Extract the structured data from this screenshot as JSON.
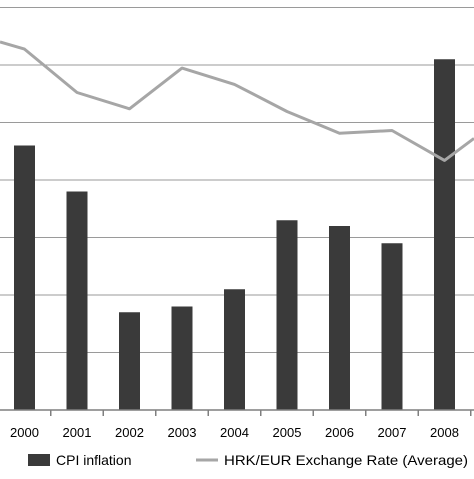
{
  "chart_data": {
    "type": "bar",
    "categories": [
      "2000",
      "2001",
      "2002",
      "2003",
      "2004",
      "2005",
      "2006",
      "2007",
      "2008"
    ],
    "series": [
      {
        "name": "CPI inflation",
        "type": "bar",
        "values": [
          4.6,
          3.8,
          1.7,
          1.8,
          2.1,
          3.3,
          3.2,
          2.9,
          6.1
        ],
        "color": "#3a3a3a"
      },
      {
        "name": "HRK/EUR Exchange Rate (Average)",
        "type": "line",
        "values": [
          7.63,
          7.47,
          7.41,
          7.56,
          7.5,
          7.4,
          7.32,
          7.33,
          7.22
        ],
        "color": "#a6a6a6"
      }
    ],
    "ylim": [
      0,
      7
    ],
    "y2lim": [
      6.3,
      7.8
    ],
    "grid": true,
    "legend_position": "bottom",
    "title": "",
    "xlabel": "",
    "ylabel": ""
  }
}
